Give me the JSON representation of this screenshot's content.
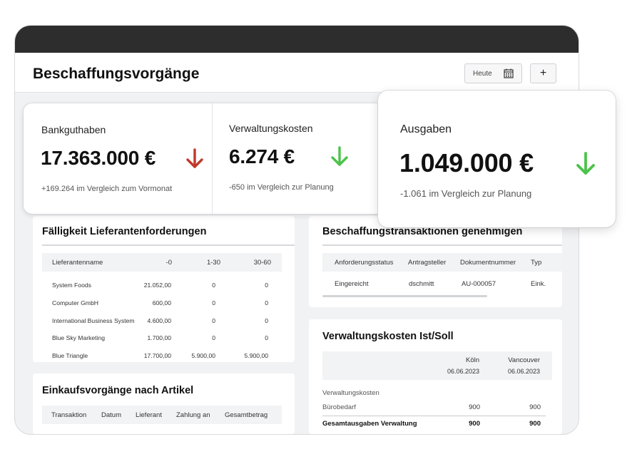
{
  "header": {
    "title": "Beschaffungsvorgänge",
    "date_label": "Heute",
    "add_label": "+"
  },
  "kpis": [
    {
      "label": "Bankguthaben",
      "value": "17.363.000 €",
      "note": "+169.264 im Vergleich zum Vormonat",
      "trend": "down",
      "trend_color": "#c0392b"
    },
    {
      "label": "Verwaltungskosten",
      "value": "6.274 €",
      "note": "-650 im Vergleich zur Planung",
      "trend": "down",
      "trend_color": "#4cc34a"
    },
    {
      "label": "Ausgaben",
      "value": "1.049.000 €",
      "note": "-1.061 im Vergleich zur Planung",
      "trend": "down",
      "trend_color": "#4cc34a"
    }
  ],
  "supplier_due": {
    "title": "Fälligkeit Lieferantenforderungen",
    "columns": [
      "Lieferantenname",
      "-0",
      "1-30",
      "30-60"
    ],
    "rows": [
      [
        "System Foods",
        "21.052,00",
        "0",
        "0"
      ],
      [
        "Computer GmbH",
        "600,00",
        "0",
        "0"
      ],
      [
        "International Business System",
        "4.600,00",
        "0",
        "0"
      ],
      [
        "Blue Sky Marketing",
        "1.700,00",
        "0",
        "0"
      ],
      [
        "Blue Triangle",
        "17.700,00",
        "5.900,00",
        "5.900,00"
      ]
    ]
  },
  "approve": {
    "title": "Beschaffungstransaktionen genehmigen",
    "columns": [
      "Anforderungsstatus",
      "Antragsteller",
      "Dokumentnummer",
      "Typ"
    ],
    "rows": [
      [
        "Eingereicht",
        "dschmitt",
        "AU-000057",
        "Eink."
      ]
    ]
  },
  "purchases": {
    "title": "Einkaufsvorgänge nach Artikel",
    "columns": [
      "Transaktion",
      "Datum",
      "Lieferant",
      "Zahlung an",
      "Gesamtbetrag"
    ]
  },
  "admin_costs": {
    "title": "Verwaltungskosten Ist/Soll",
    "columns": [
      {
        "name": "Köln",
        "date": "06.06.2023"
      },
      {
        "name": "Vancouver",
        "date": "06.06.2023"
      }
    ],
    "section": "Verwaltungskosten",
    "row": {
      "label": "Bürobedarf",
      "values": [
        "900",
        "900"
      ]
    },
    "total": {
      "label": "Gesamtausgaben Verwaltung",
      "values": [
        "900",
        "900"
      ]
    }
  },
  "colors": {
    "accent_red": "#c0392b",
    "accent_green": "#4cc34a",
    "titlebar": "#2d2d2d"
  }
}
